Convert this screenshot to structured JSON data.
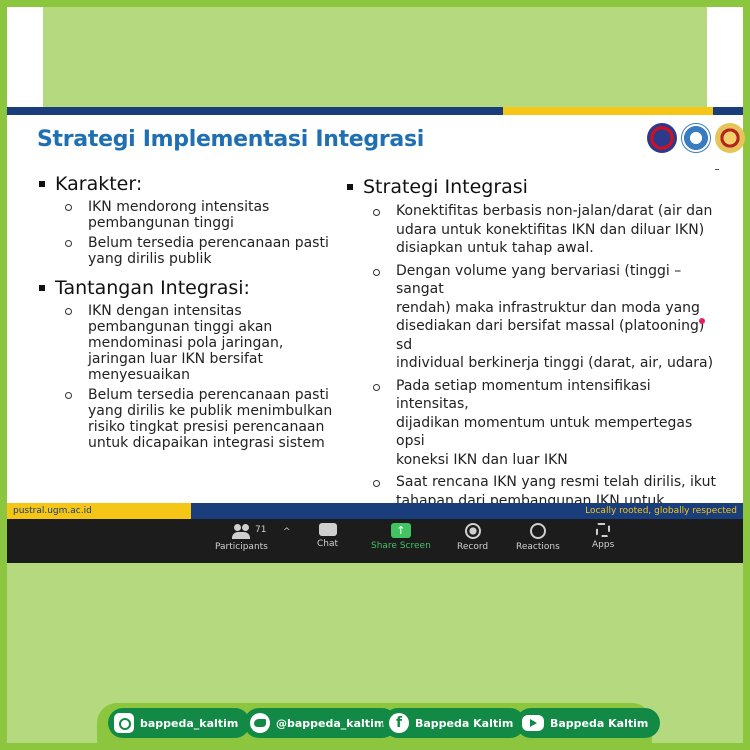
{
  "slide": {
    "title": "Strategi Implementasi Integrasi",
    "left_sections": [
      {
        "heading": "Karakter:",
        "items": [
          "IKN mendorong intensitas\npembangunan tinggi",
          "Belum tersedia perencanaan pasti\nyang dirilis publik"
        ]
      },
      {
        "heading": "Tantangan Integrasi:",
        "items": [
          "IKN dengan intensitas\npembangunan tinggi akan\nmendominasi pola jaringan,\njaringan luar IKN bersifat\nmenyesuaikan",
          "Belum tersedia perencanaan pasti\nyang dirilis ke publik menimbulkan\nrisiko tingkat presisi perencanaan\nuntuk dicapaikan integrasi sistem"
        ]
      }
    ],
    "right_section": {
      "heading": "Strategi Integrasi",
      "items": [
        "Konektifitas berbasis non-jalan/darat (air dan\nudara untuk konektifitas IKN dan diluar IKN)\ndisiapkan untuk tahap awal.",
        "Dengan volume yang bervariasi (tinggi – sangat\nrendah) maka infrastruktur dan moda yang\ndisediakan dari bersifat massal (platooning) sd\nindividual berkinerja tinggi (darat, air, udara)",
        "Pada setiap momentum intensifikasi intensitas,\ndijadikan momentum untuk mempertegas opsi\nkoneksi IKN dan luar IKN",
        "Saat rencana IKN yang resmi telah dirilis, ikut\ntahapan dari pembangunan IKN untuk\nadjustment teknis integrasikan rencana IKN\ndan luar IKN"
      ]
    },
    "footer_url": "pustral.ugm.ac.id",
    "footer_tagline": "Locally rooted, globally respected"
  },
  "toolbar": {
    "participants_count": "71",
    "caret": "^",
    "participants": "Participants",
    "chat": "Chat",
    "share_screen": "Share Screen",
    "share_glyph": "↑",
    "record": "Record",
    "reactions": "Reactions",
    "apps": "Apps"
  },
  "social": {
    "instagram": "bappeda_kaltim",
    "twitter": "@bappeda_kaltim",
    "facebook": "Bappeda Kaltim",
    "facebook_glyph": "f",
    "youtube": "Bappeda Kaltim"
  },
  "colors": {
    "frame_green": "#8cc63f",
    "inner_green": "#b5d97f",
    "pill_green": "#128a46",
    "title_blue": "#1f6fb2",
    "navy": "#1a3d7c",
    "yellow": "#f5c518",
    "share_green": "#43c463"
  }
}
